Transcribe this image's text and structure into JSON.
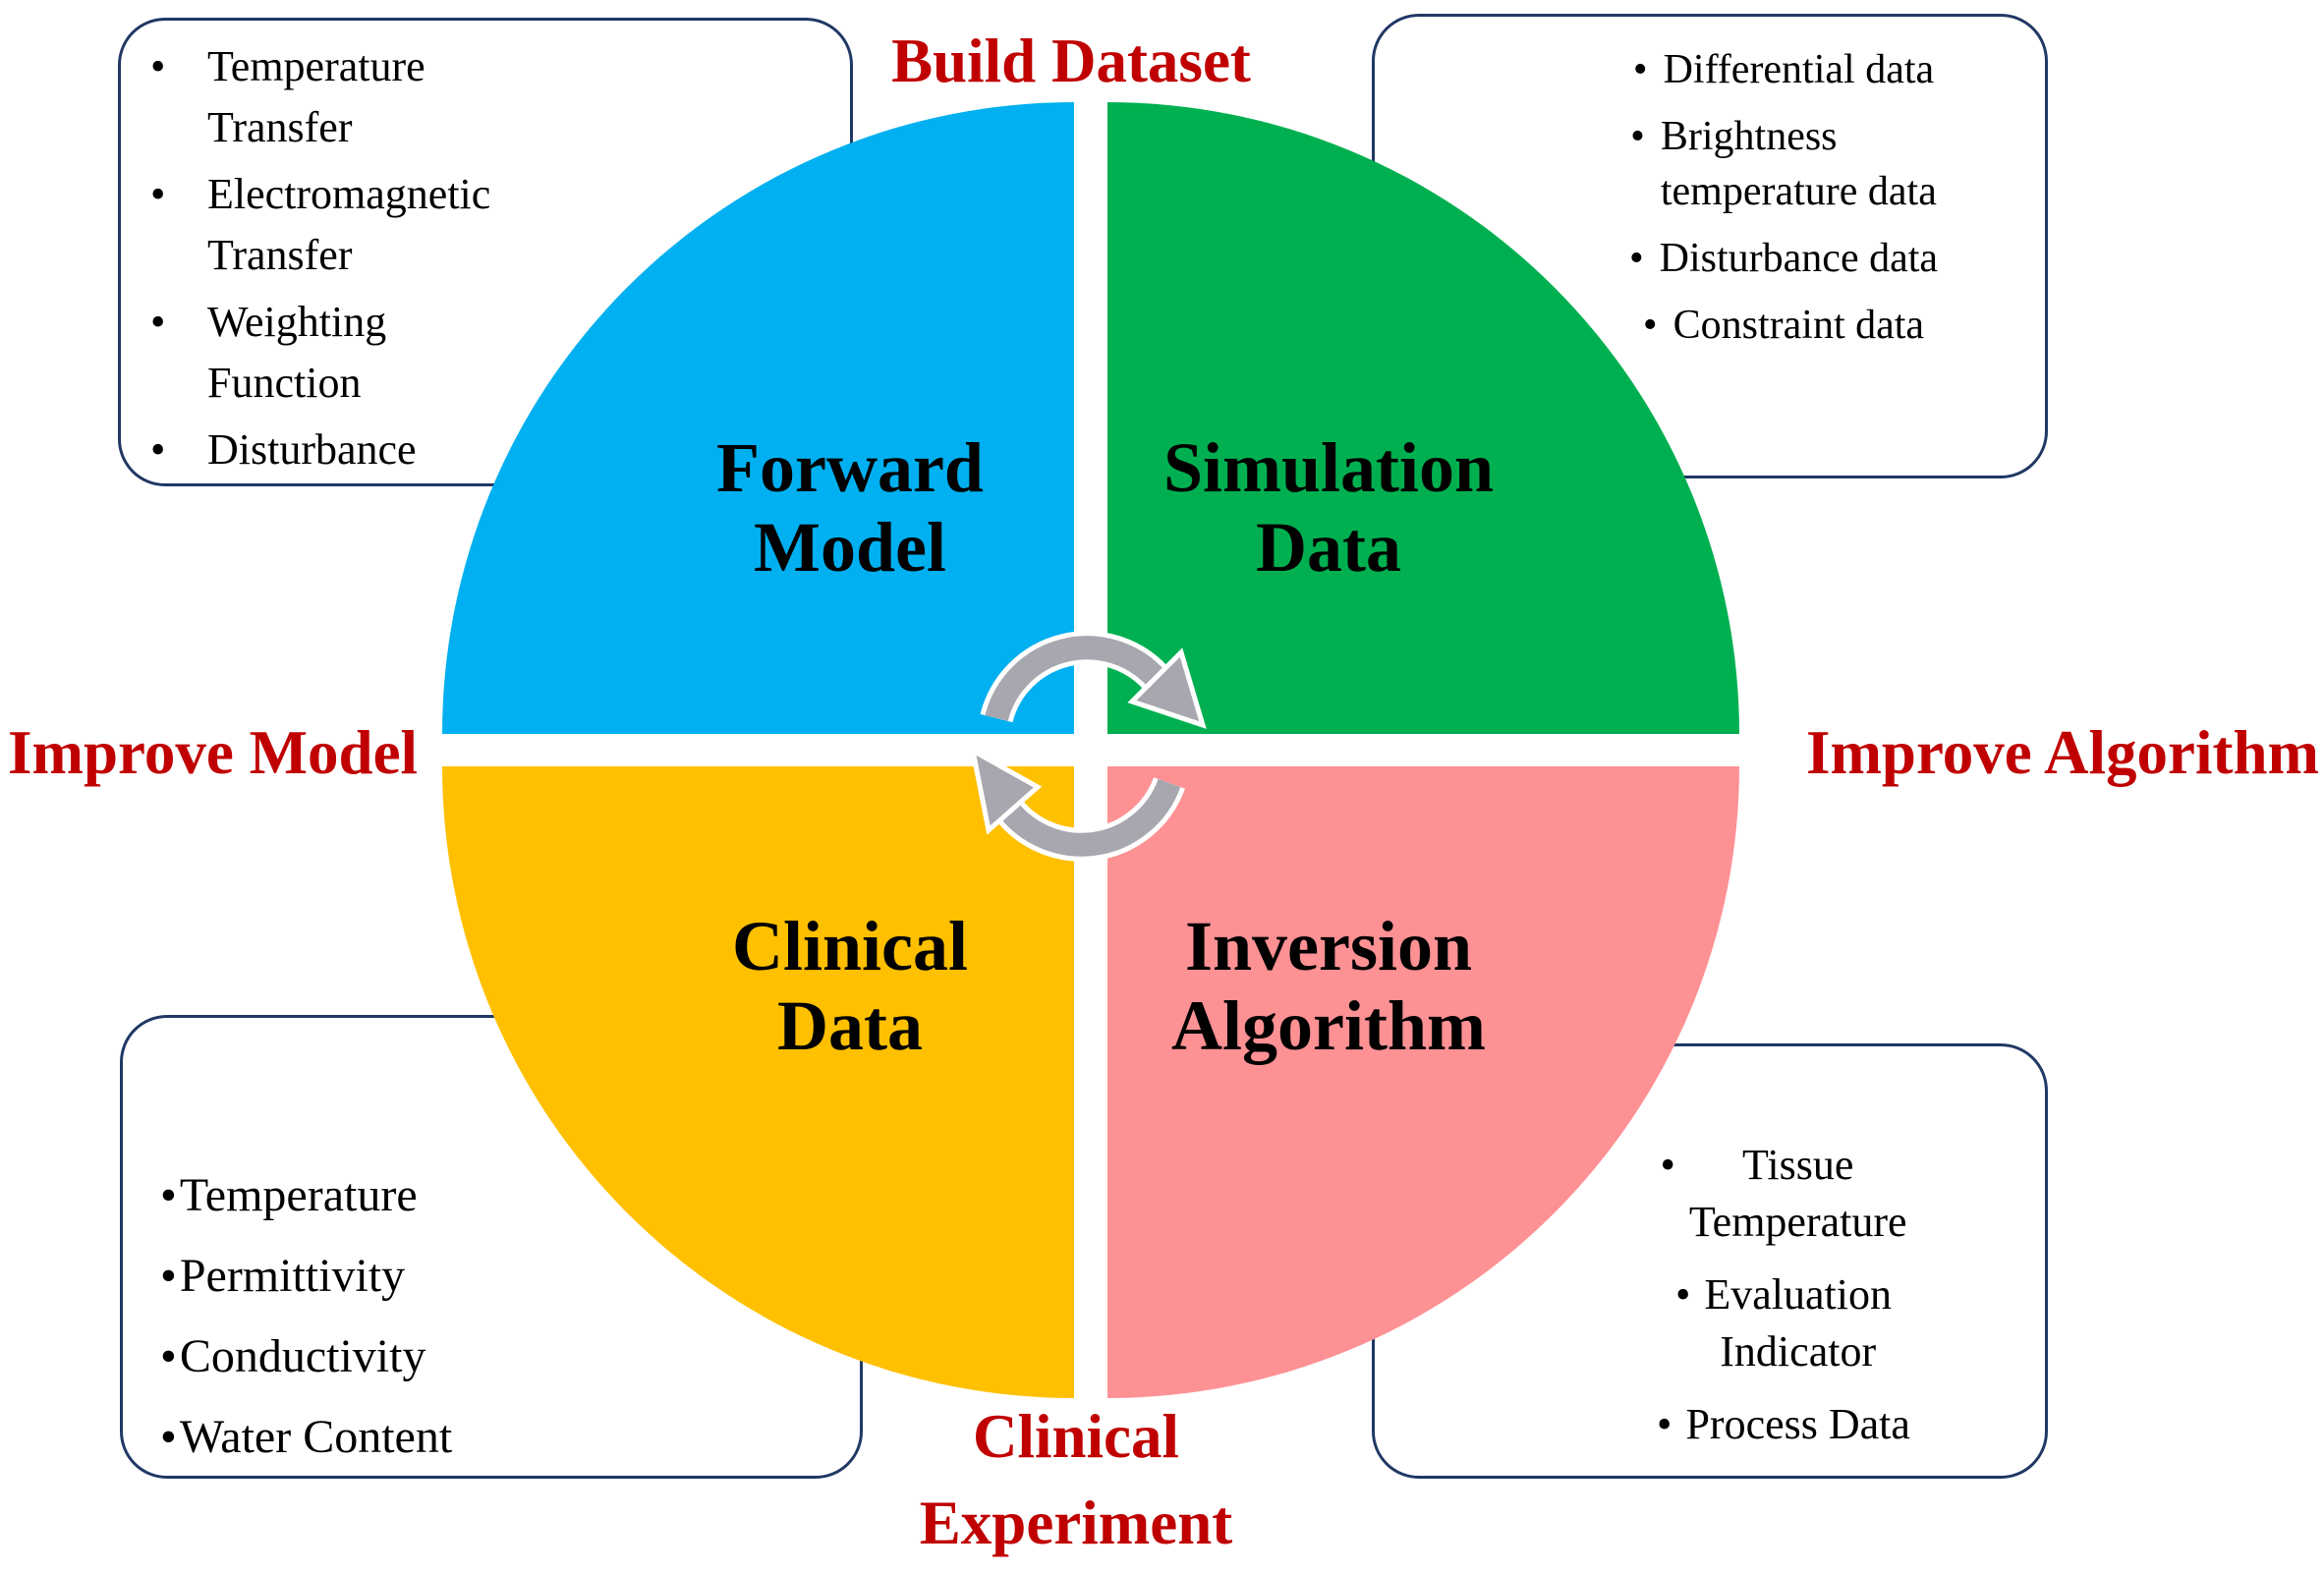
{
  "figure": {
    "description": "Four-quadrant cycle diagram with corner note boxes",
    "colors": {
      "accent_red": "#C00000",
      "box_border": "#203864",
      "arrow_gray": "#A7A7AF",
      "arrow_outline": "#FFFFFF",
      "title_black": "#000000"
    }
  },
  "labels": {
    "build_dataset": "Build Dataset",
    "improve_model": "Improve Model",
    "improve_algorithm": "Improve Algorithm",
    "clinical_experiment": "Clinical\nExperiment"
  },
  "quadrants": {
    "forward_model": {
      "title": "Forward\nModel",
      "color": "#00B0F0"
    },
    "simulation_data": {
      "title": "Simulation\nData",
      "color": "#00B050"
    },
    "clinical_data": {
      "title": "Clinical\nData",
      "color": "#FFC000"
    },
    "inversion_algorithm": {
      "title": "Inversion\nAlgorithm",
      "color": "#FD9194"
    }
  },
  "boxes": {
    "forward_model_notes": {
      "bullet": "•",
      "items": [
        "Temperature\nTransfer",
        "Electromagnetic\nTransfer",
        "Weighting\nFunction",
        "Disturbance"
      ]
    },
    "simulation_data_notes": {
      "bullet": "•",
      "items": [
        "Differential data",
        "Brightness\ntemperature data",
        "Disturbance data",
        "Constraint data"
      ]
    },
    "clinical_data_notes": {
      "bullet": "•",
      "items": [
        "Temperature",
        "Permittivity",
        "Conductivity",
        "Water Content"
      ]
    },
    "inversion_algorithm_notes": {
      "bullet": "•",
      "items": [
        "Tissue\nTemperature",
        "Evaluation\nIndicator",
        "Process Data"
      ]
    }
  }
}
